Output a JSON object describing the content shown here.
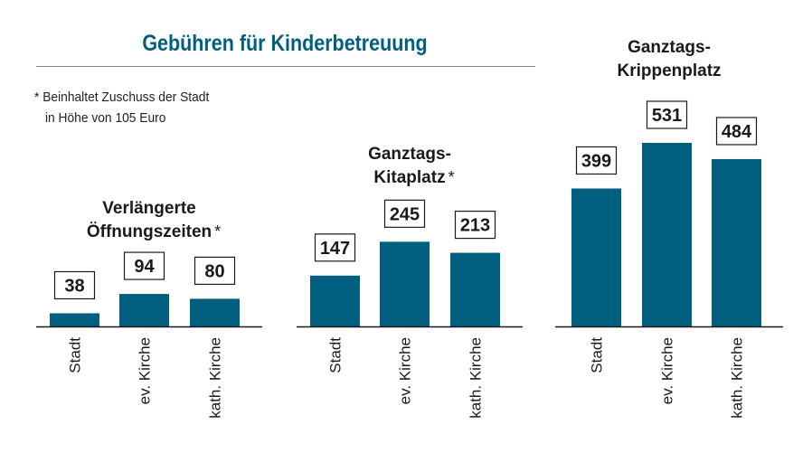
{
  "header": {
    "title": "Gebühren für Kinderbetreuung",
    "footnote_line1": "* Beinhaltet Zuschuss der Stadt",
    "footnote_line2": "in Höhe von 105 Euro"
  },
  "colors": {
    "bar": "#005f7f",
    "title": "#005f7f",
    "axis": "#1a1a1a"
  },
  "chart_data": [
    {
      "type": "bar",
      "title": "Verlängerte Öffnungszeiten",
      "title_lines": [
        "Verlängerte",
        "Öffnungszeiten"
      ],
      "footnote_marker": "*",
      "categories": [
        "Stadt",
        "ev. Kirche",
        "kath. Kirche"
      ],
      "values": [
        38,
        94,
        80
      ],
      "data_labels": [
        "38",
        "94",
        "80"
      ]
    },
    {
      "type": "bar",
      "title": "Ganztags-Kitaplatz",
      "title_lines": [
        "Ganztags-",
        "Kitaplatz"
      ],
      "footnote_marker": "*",
      "categories": [
        "Stadt",
        "ev. Kirche",
        "kath. Kirche"
      ],
      "values": [
        147,
        245,
        213
      ],
      "data_labels": [
        "147",
        "245",
        "213"
      ]
    },
    {
      "type": "bar",
      "title": "Ganztags-Krippenplatz",
      "title_lines": [
        "Ganztags-",
        "Krippenplatz"
      ],
      "footnote_marker": "",
      "categories": [
        "Stadt",
        "ev. Kirche",
        "kath. Kirche"
      ],
      "values": [
        399,
        531,
        484
      ],
      "data_labels": [
        "399",
        "531",
        "484"
      ]
    }
  ]
}
